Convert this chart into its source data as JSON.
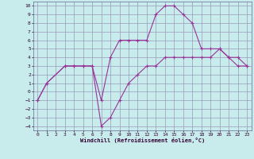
{
  "xlabel": "Windchill (Refroidissement éolien,°C)",
  "background_color": "#c8ecec",
  "line_color": "#993399",
  "grid_color": "#9999bb",
  "xlim": [
    -0.5,
    23.5
  ],
  "ylim": [
    -4.5,
    10.5
  ],
  "xticks": [
    0,
    1,
    2,
    3,
    4,
    5,
    6,
    7,
    8,
    9,
    10,
    11,
    12,
    13,
    14,
    15,
    16,
    17,
    18,
    19,
    20,
    21,
    22,
    23
  ],
  "yticks": [
    -4,
    -3,
    -2,
    -1,
    0,
    1,
    2,
    3,
    4,
    5,
    6,
    7,
    8,
    9,
    10
  ],
  "series1_x": [
    0,
    1,
    3,
    4,
    5,
    6,
    7,
    8,
    9,
    10,
    11,
    12,
    13,
    14,
    15,
    16,
    17,
    18,
    19,
    20,
    21,
    22,
    23
  ],
  "series1_y": [
    -1,
    1,
    3,
    3,
    3,
    3,
    -1,
    4,
    6,
    6,
    6,
    6,
    9,
    10,
    10,
    9,
    8,
    5,
    5,
    5,
    4,
    4,
    3
  ],
  "series2_x": [
    0,
    1,
    3,
    4,
    5,
    6,
    7,
    8,
    9,
    10,
    11,
    12,
    13,
    14,
    15,
    16,
    17,
    18,
    19,
    20,
    21,
    22,
    23
  ],
  "series2_y": [
    -1,
    1,
    3,
    3,
    3,
    3,
    -4,
    -3,
    -1,
    1,
    2,
    3,
    3,
    4,
    4,
    4,
    4,
    4,
    4,
    5,
    4,
    3,
    3
  ]
}
